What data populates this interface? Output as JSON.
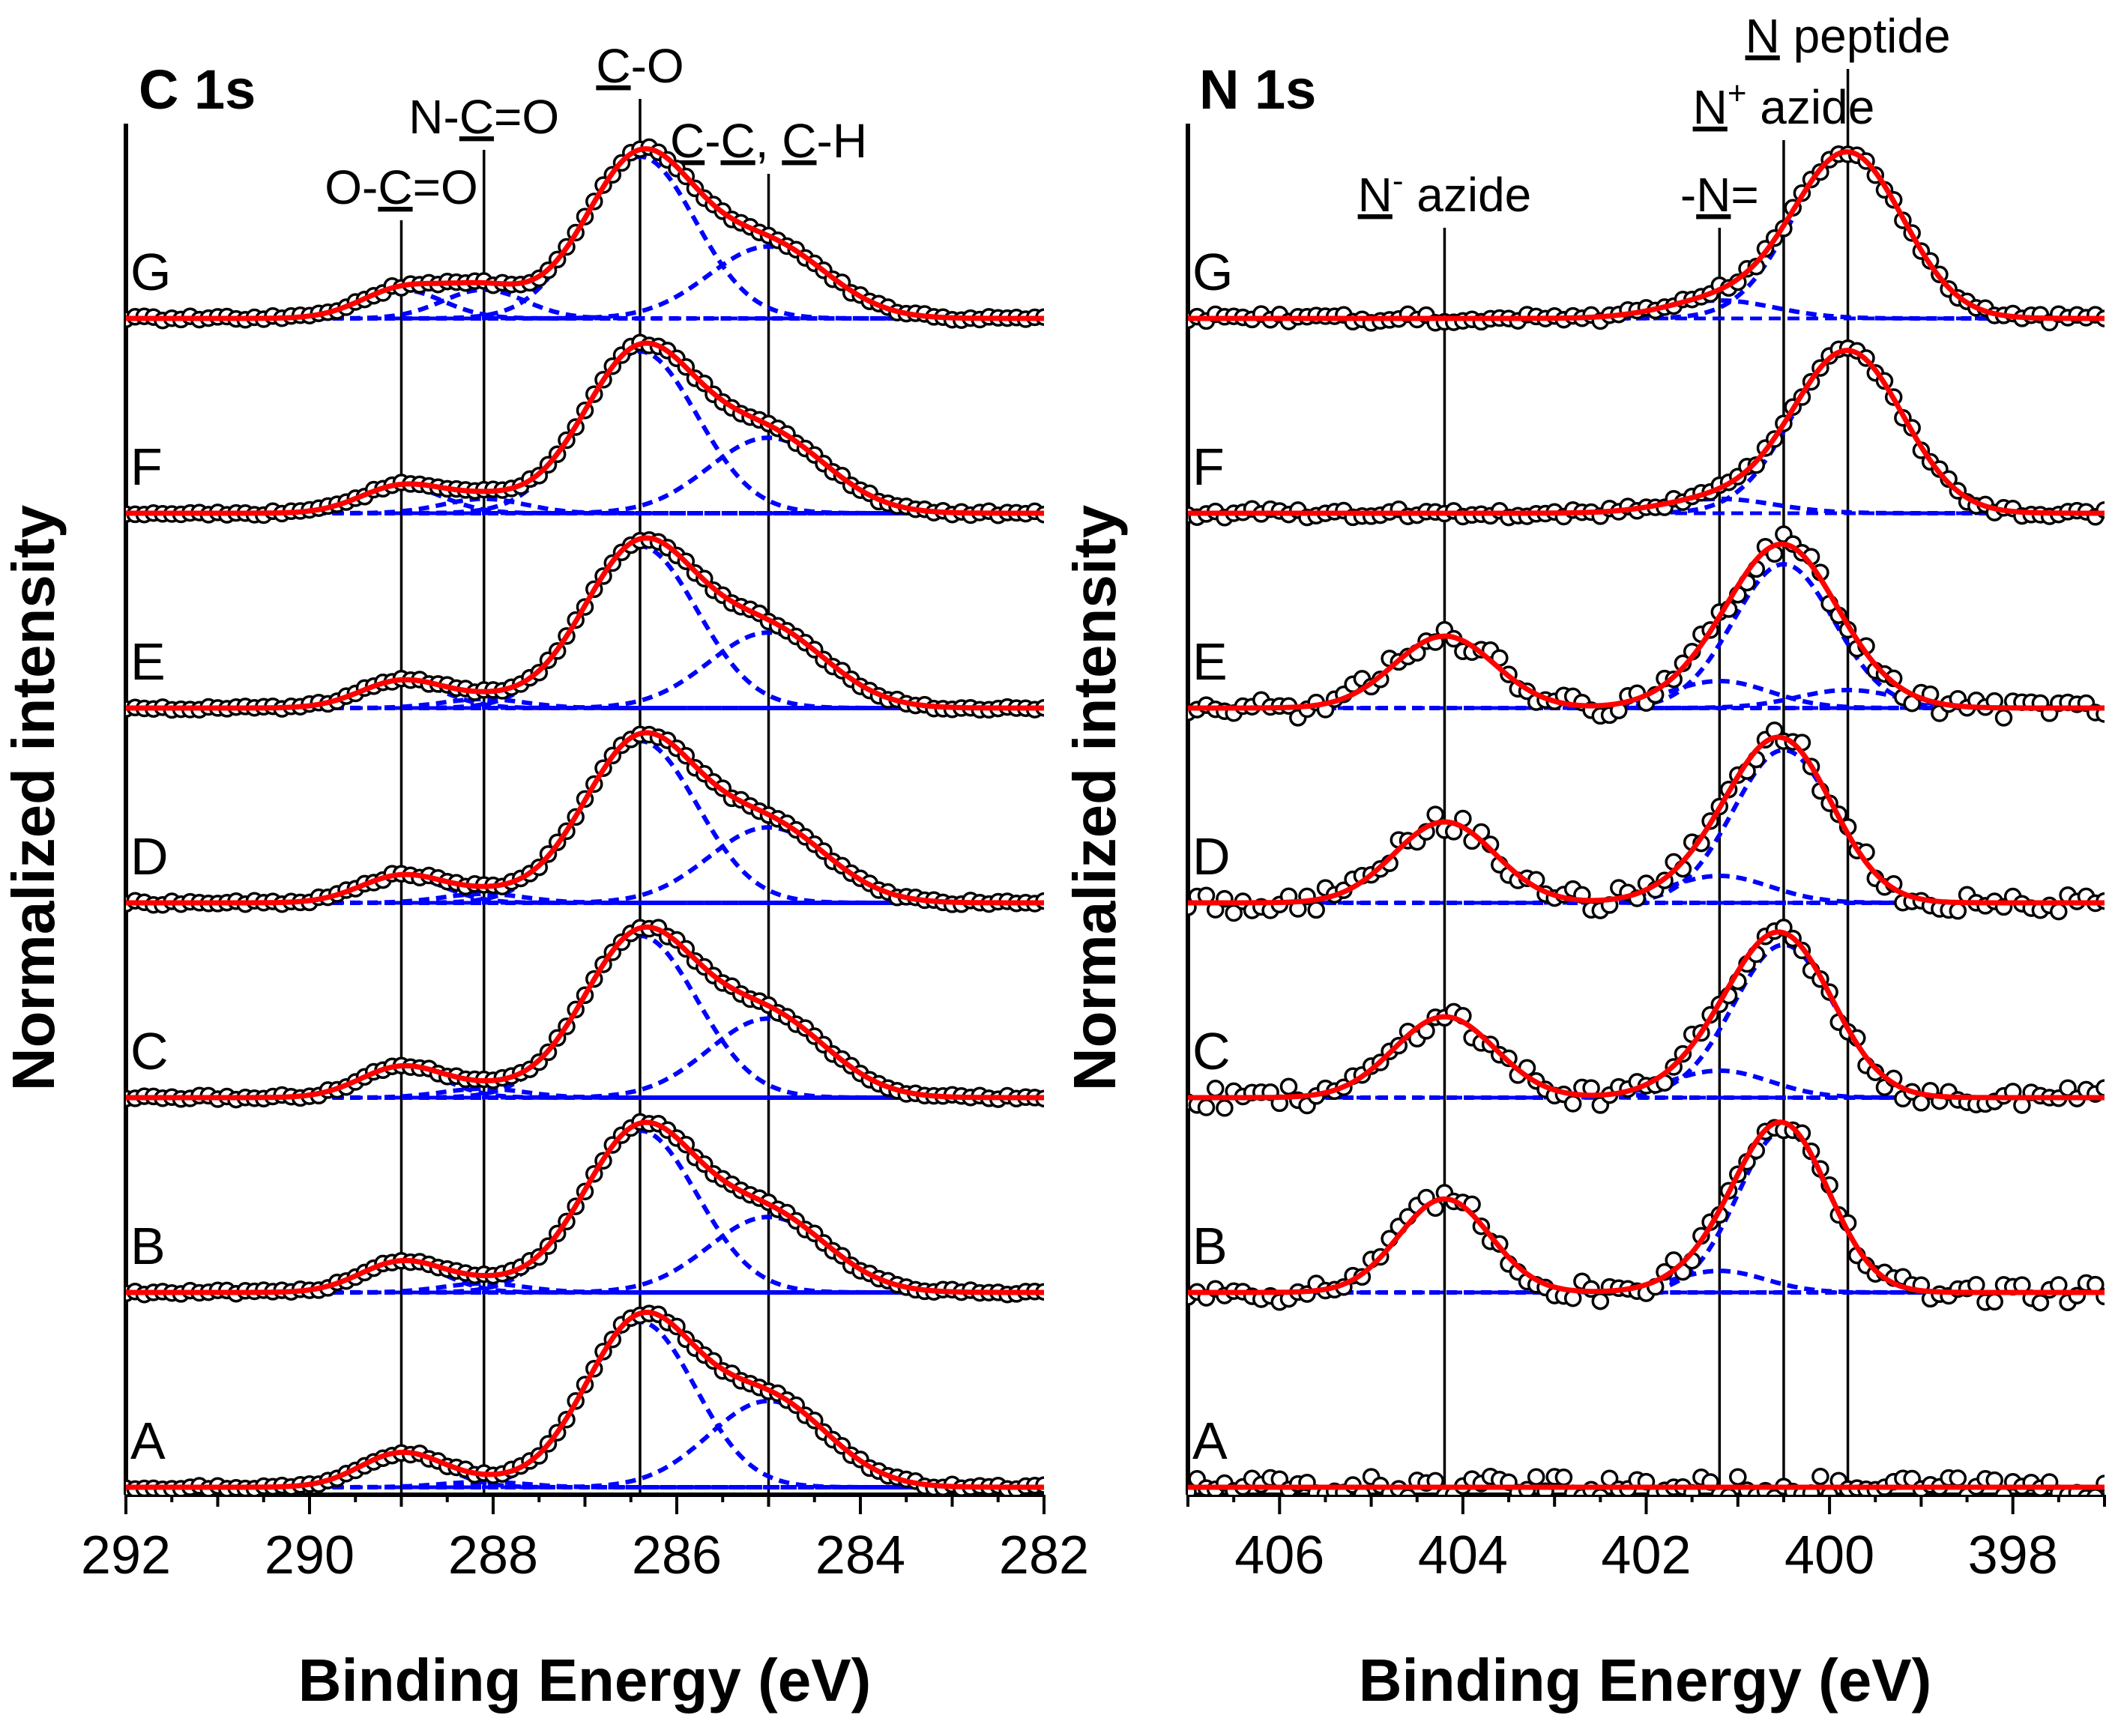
{
  "figure": {
    "ylabel": "Normalized intensity"
  },
  "chart_data": [
    {
      "type": "line",
      "title": "C 1s",
      "xlabel": "Binding Energy (eV)",
      "ylabel": "Normalized intensity",
      "xlim": [
        292,
        282
      ],
      "x_reversed": true,
      "xticks": [
        "292",
        "290",
        "288",
        "286",
        "284",
        "282"
      ],
      "ylim": [
        0,
        6.6
      ],
      "peak_markers": [
        {
          "label": "O-C=O",
          "underline": "C",
          "x": 289.0
        },
        {
          "label": "N-C=O",
          "underline": "C",
          "x": 288.1
        },
        {
          "label": "C-O",
          "underline": "C",
          "x": 286.4
        },
        {
          "label": "C-C, C-H",
          "underline": "C",
          "x": 285.0
        }
      ],
      "series": [
        {
          "name": "A",
          "offset": 0,
          "components": [
            {
              "center": 289.0,
              "height": 0.19,
              "sigma": 0.45
            },
            {
              "center": 288.1,
              "height": 0.03,
              "sigma": 0.45
            },
            {
              "center": 286.4,
              "height": 0.92,
              "sigma": 0.6
            },
            {
              "center": 285.0,
              "height": 0.48,
              "sigma": 0.65
            }
          ]
        },
        {
          "name": "B",
          "offset": 1,
          "components": [
            {
              "center": 289.0,
              "height": 0.17,
              "sigma": 0.45
            },
            {
              "center": 288.1,
              "height": 0.05,
              "sigma": 0.45
            },
            {
              "center": 286.4,
              "height": 0.9,
              "sigma": 0.62
            },
            {
              "center": 285.0,
              "height": 0.42,
              "sigma": 0.65
            }
          ]
        },
        {
          "name": "C",
          "offset": 2,
          "components": [
            {
              "center": 289.0,
              "height": 0.17,
              "sigma": 0.45
            },
            {
              "center": 288.1,
              "height": 0.05,
              "sigma": 0.45
            },
            {
              "center": 286.4,
              "height": 0.9,
              "sigma": 0.62
            },
            {
              "center": 285.0,
              "height": 0.44,
              "sigma": 0.65
            }
          ]
        },
        {
          "name": "D",
          "offset": 3,
          "components": [
            {
              "center": 289.0,
              "height": 0.15,
              "sigma": 0.45
            },
            {
              "center": 288.1,
              "height": 0.05,
              "sigma": 0.45
            },
            {
              "center": 286.4,
              "height": 0.9,
              "sigma": 0.62
            },
            {
              "center": 285.0,
              "height": 0.42,
              "sigma": 0.65
            }
          ]
        },
        {
          "name": "E",
          "offset": 4,
          "components": [
            {
              "center": 289.0,
              "height": 0.15,
              "sigma": 0.45
            },
            {
              "center": 288.1,
              "height": 0.05,
              "sigma": 0.45
            },
            {
              "center": 286.4,
              "height": 0.9,
              "sigma": 0.62
            },
            {
              "center": 285.0,
              "height": 0.42,
              "sigma": 0.65
            }
          ]
        },
        {
          "name": "F",
          "offset": 5,
          "components": [
            {
              "center": 289.0,
              "height": 0.15,
              "sigma": 0.45
            },
            {
              "center": 288.1,
              "height": 0.08,
              "sigma": 0.45
            },
            {
              "center": 286.4,
              "height": 0.9,
              "sigma": 0.62
            },
            {
              "center": 285.0,
              "height": 0.42,
              "sigma": 0.65
            }
          ]
        },
        {
          "name": "G",
          "offset": 6,
          "components": [
            {
              "center": 289.0,
              "height": 0.16,
              "sigma": 0.45
            },
            {
              "center": 288.1,
              "height": 0.16,
              "sigma": 0.45
            },
            {
              "center": 286.4,
              "height": 0.9,
              "sigma": 0.6
            },
            {
              "center": 285.0,
              "height": 0.4,
              "sigma": 0.65
            }
          ]
        }
      ]
    },
    {
      "type": "line",
      "title": "N 1s",
      "xlabel": "Binding Energy (eV)",
      "ylabel": "Normalized intensity",
      "xlim": [
        407,
        397
      ],
      "x_reversed": true,
      "xticks": [
        "406",
        "404",
        "402",
        "400",
        "398"
      ],
      "ylim": [
        0,
        6.6
      ],
      "peak_markers": [
        {
          "label": "N",
          "underline": "N",
          "sup": "-",
          "suffix": " azide",
          "x": 404.2
        },
        {
          "label": "-N=",
          "underline": "N",
          "x": 401.2
        },
        {
          "label": "N",
          "underline": "N",
          "sup": "+",
          "suffix": " azide",
          "x": 400.5
        },
        {
          "label": "N",
          "underline": "N",
          "suffix": " peptide",
          "x": 399.8
        }
      ],
      "series": [
        {
          "name": "A",
          "offset": 0,
          "components": []
        },
        {
          "name": "B",
          "offset": 1,
          "components": [
            {
              "center": 404.2,
              "height": 0.52,
              "sigma": 0.5
            },
            {
              "center": 401.2,
              "height": 0.12,
              "sigma": 0.5
            },
            {
              "center": 400.5,
              "height": 0.9,
              "sigma": 0.5
            }
          ]
        },
        {
          "name": "C",
          "offset": 2,
          "components": [
            {
              "center": 404.2,
              "height": 0.45,
              "sigma": 0.55
            },
            {
              "center": 401.2,
              "height": 0.15,
              "sigma": 0.55
            },
            {
              "center": 400.5,
              "height": 0.85,
              "sigma": 0.55
            }
          ]
        },
        {
          "name": "D",
          "offset": 3,
          "components": [
            {
              "center": 404.2,
              "height": 0.45,
              "sigma": 0.55
            },
            {
              "center": 401.2,
              "height": 0.15,
              "sigma": 0.55
            },
            {
              "center": 400.5,
              "height": 0.85,
              "sigma": 0.55
            }
          ]
        },
        {
          "name": "E",
          "offset": 4,
          "components": [
            {
              "center": 404.2,
              "height": 0.4,
              "sigma": 0.55
            },
            {
              "center": 401.2,
              "height": 0.15,
              "sigma": 0.55
            },
            {
              "center": 400.5,
              "height": 0.8,
              "sigma": 0.55
            },
            {
              "center": 399.8,
              "height": 0.1,
              "sigma": 0.55
            }
          ]
        },
        {
          "name": "F",
          "offset": 5,
          "components": [
            {
              "center": 401.2,
              "height": 0.08,
              "sigma": 0.6
            },
            {
              "center": 399.8,
              "height": 0.9,
              "sigma": 0.6
            }
          ]
        },
        {
          "name": "G",
          "offset": 6,
          "components": [
            {
              "center": 401.2,
              "height": 0.1,
              "sigma": 0.6
            },
            {
              "center": 399.8,
              "height": 0.92,
              "sigma": 0.6
            }
          ]
        }
      ]
    }
  ],
  "colors": {
    "fit": "#ff0000",
    "component": "#0000ff",
    "data_marker": "#000000",
    "axes": "#000000"
  }
}
